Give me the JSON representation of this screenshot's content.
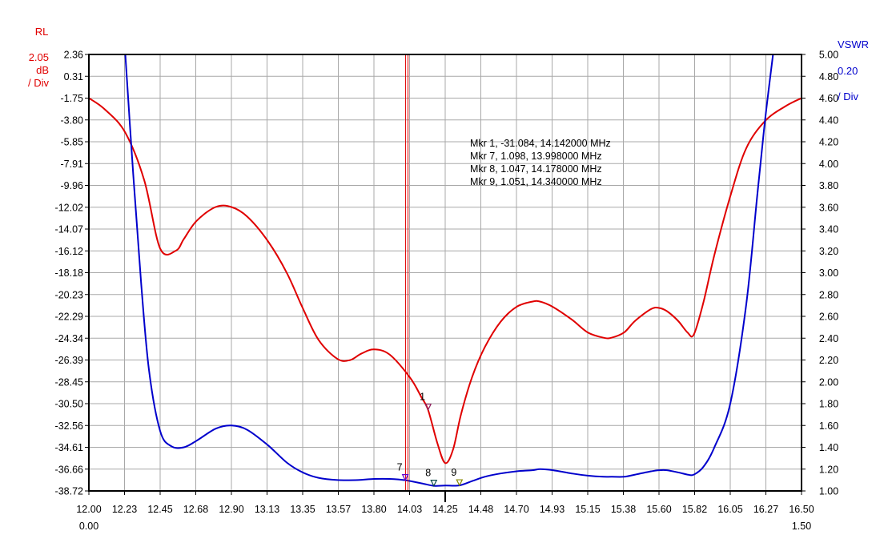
{
  "chart_data": {
    "type": "line",
    "title": "",
    "left_axis": {
      "title": "RL",
      "scale_value": "2.05",
      "unit": "dB",
      "per_div": "/ Div",
      "ticks": [
        "2.36",
        "0.31",
        "-1.75",
        "-3.80",
        "-5.85",
        "-7.91",
        "-9.96",
        "-12.02",
        "-14.07",
        "-16.12",
        "-18.18",
        "-20.23",
        "-22.29",
        "-24.34",
        "-26.39",
        "-28.45",
        "-30.50",
        "-32.56",
        "-34.61",
        "-36.66",
        "-38.72"
      ],
      "ylim": [
        -38.72,
        2.36
      ],
      "color": "#e00000"
    },
    "right_axis": {
      "title": "VSWR",
      "scale_value": "0.20",
      "per_div": "/ Div",
      "ticks": [
        "5.00",
        "4.80",
        "4.60",
        "4.40",
        "4.20",
        "4.00",
        "3.80",
        "3.60",
        "3.40",
        "3.20",
        "3.00",
        "2.80",
        "2.60",
        "2.40",
        "2.20",
        "2.00",
        "1.80",
        "1.60",
        "1.40",
        "1.20",
        "1.00"
      ],
      "ylim": [
        1.0,
        5.0
      ],
      "color": "#0000cc"
    },
    "x_axis": {
      "ticks": [
        "12.00",
        "12.23",
        "12.45",
        "12.68",
        "12.90",
        "13.13",
        "13.35",
        "13.57",
        "13.80",
        "14.03",
        "14.25",
        "14.48",
        "14.70",
        "14.93",
        "15.15",
        "15.38",
        "15.60",
        "15.82",
        "16.05",
        "16.27",
        "16.50"
      ],
      "xlim": [
        12.0,
        16.5
      ],
      "start_label": "0.00",
      "end_label": "1.50"
    },
    "grid": true,
    "series": [
      {
        "axis": "left",
        "color": "#e00000",
        "x": [
          12.0,
          12.1,
          12.23,
          12.35,
          12.45,
          12.55,
          12.6,
          12.68,
          12.8,
          12.9,
          13.0,
          13.13,
          13.25,
          13.35,
          13.45,
          13.57,
          13.65,
          13.72,
          13.8,
          13.9,
          14.03,
          14.1,
          14.142,
          14.2,
          14.25,
          14.3,
          14.35,
          14.42,
          14.5,
          14.6,
          14.7,
          14.8,
          14.85,
          14.93,
          15.05,
          15.15,
          15.25,
          15.3,
          15.38,
          15.45,
          15.55,
          15.6,
          15.65,
          15.72,
          15.78,
          15.82,
          15.88,
          15.95,
          16.05,
          16.15,
          16.27,
          16.4,
          16.5
        ],
        "y": [
          -1.75,
          -2.8,
          -5.0,
          -9.5,
          -15.9,
          -16.1,
          -15.0,
          -13.3,
          -12.0,
          -12.0,
          -12.9,
          -15.2,
          -18.2,
          -21.5,
          -24.5,
          -26.3,
          -26.4,
          -25.8,
          -25.4,
          -25.9,
          -28.1,
          -29.9,
          -31.084,
          -34.2,
          -36.1,
          -34.8,
          -31.5,
          -28.0,
          -25.2,
          -22.8,
          -21.4,
          -20.9,
          -20.9,
          -21.4,
          -22.6,
          -23.8,
          -24.3,
          -24.3,
          -23.8,
          -22.7,
          -21.6,
          -21.5,
          -21.8,
          -22.7,
          -23.8,
          -24.0,
          -21.0,
          -16.5,
          -11.0,
          -6.5,
          -3.9,
          -2.5,
          -1.75
        ]
      },
      {
        "axis": "right",
        "color": "#0000cc",
        "x": [
          12.23,
          12.28,
          12.33,
          12.38,
          12.45,
          12.52,
          12.6,
          12.68,
          12.8,
          12.9,
          13.0,
          13.13,
          13.25,
          13.35,
          13.45,
          13.57,
          13.7,
          13.8,
          13.9,
          13.998,
          14.1,
          14.178,
          14.25,
          14.34,
          14.42,
          14.5,
          14.6,
          14.7,
          14.8,
          14.85,
          14.93,
          15.05,
          15.15,
          15.25,
          15.3,
          15.38,
          15.45,
          15.55,
          15.6,
          15.65,
          15.72,
          15.78,
          15.82,
          15.88,
          15.95,
          16.05,
          16.15,
          16.22,
          16.27,
          16.32
        ],
        "y": [
          5.0,
          3.9,
          2.9,
          2.1,
          1.55,
          1.41,
          1.4,
          1.46,
          1.57,
          1.6,
          1.56,
          1.42,
          1.26,
          1.17,
          1.12,
          1.1,
          1.1,
          1.11,
          1.11,
          1.098,
          1.07,
          1.047,
          1.05,
          1.051,
          1.09,
          1.13,
          1.16,
          1.18,
          1.19,
          1.2,
          1.19,
          1.16,
          1.14,
          1.13,
          1.13,
          1.13,
          1.15,
          1.18,
          1.19,
          1.19,
          1.17,
          1.15,
          1.15,
          1.22,
          1.4,
          1.8,
          2.7,
          3.7,
          4.4,
          5.0
        ]
      }
    ],
    "cursor": {
      "x": 14.0,
      "color": "#e00000"
    },
    "center_mark_x": 14.25,
    "markers": [
      {
        "label": "1",
        "x": 14.142,
        "y": -31.084,
        "axis": "left",
        "color": "#8e1e5e"
      },
      {
        "label": "7",
        "x": 13.998,
        "y": 1.098,
        "axis": "right",
        "color": "#6600cc"
      },
      {
        "label": "8",
        "x": 14.178,
        "y": 1.047,
        "axis": "right",
        "color": "#0a4a4a"
      },
      {
        "label": "9",
        "x": 14.34,
        "y": 1.051,
        "axis": "right",
        "color": "#8a8a00"
      }
    ],
    "annotations": [
      {
        "text": "Mkr 1, -31.084, 14.142000 MHz",
        "color": "#8e1e5e"
      },
      {
        "text": "Mkr 7, 1.098, 13.998000 MHz",
        "color": "#6600cc"
      },
      {
        "text": "Mkr 8, 1.047, 14.178000 MHz",
        "color": "#0a4a4a"
      },
      {
        "text": "Mkr 9, 1.051, 14.340000 MHz",
        "color": "#8a8a00"
      }
    ]
  }
}
